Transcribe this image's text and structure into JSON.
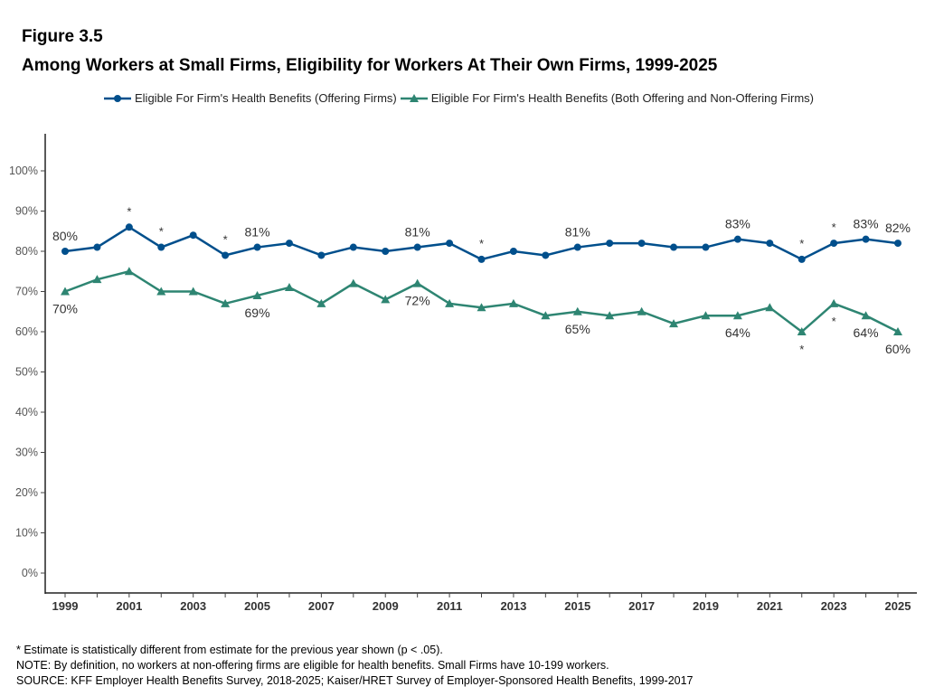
{
  "figure_label": "Figure 3.5",
  "chart_data": {
    "type": "line",
    "title": "Among Workers at Small Firms, Eligibility for Workers At Their Own Firms, 1999-2025",
    "xlabel": "",
    "ylabel": "",
    "x": [
      1999,
      2000,
      2001,
      2002,
      2003,
      2004,
      2005,
      2006,
      2007,
      2008,
      2009,
      2010,
      2011,
      2012,
      2013,
      2014,
      2015,
      2016,
      2017,
      2018,
      2019,
      2020,
      2021,
      2022,
      2023,
      2024,
      2025
    ],
    "x_tick_labels": [
      "1999",
      "2001",
      "2003",
      "2005",
      "2007",
      "2009",
      "2011",
      "2013",
      "2015",
      "2017",
      "2019",
      "2021",
      "2023",
      "2025"
    ],
    "y_tick_labels": [
      "0%",
      "10%",
      "20%",
      "30%",
      "40%",
      "50%",
      "60%",
      "70%",
      "80%",
      "90%",
      "100%"
    ],
    "ylim": [
      0,
      100
    ],
    "grid": false,
    "legend_position": "top",
    "series": [
      {
        "name": "Eligible For Firm's Health Benefits (Offering Firms)",
        "color": "#004f8c",
        "marker": "circle",
        "values": [
          80,
          81,
          86,
          81,
          84,
          79,
          81,
          82,
          79,
          81,
          80,
          81,
          82,
          78,
          80,
          79,
          81,
          82,
          82,
          81,
          81,
          83,
          82,
          78,
          82,
          83,
          82
        ],
        "data_labels": {
          "1999": "80%",
          "2005": "81%",
          "2010": "81%",
          "2015": "81%",
          "2020": "83%",
          "2024": "83%",
          "2025": "82%"
        },
        "significant_years": [
          2001,
          2002,
          2004,
          2012,
          2022,
          2023
        ]
      },
      {
        "name": "Eligible For Firm's Health Benefits (Both Offering and Non-Offering Firms)",
        "color": "#2e8572",
        "marker": "triangle",
        "values": [
          70,
          73,
          75,
          70,
          70,
          67,
          69,
          71,
          67,
          72,
          68,
          72,
          67,
          66,
          67,
          64,
          65,
          64,
          65,
          62,
          64,
          64,
          66,
          60,
          67,
          64,
          60
        ],
        "data_labels": {
          "1999": "70%",
          "2005": "69%",
          "2010": "72%",
          "2015": "65%",
          "2020": "64%",
          "2024": "64%",
          "2025": "60%"
        },
        "significant_years": [
          2022,
          2023
        ]
      }
    ],
    "significance_marker": "*"
  },
  "notes": [
    "* Estimate is statistically different from estimate for the previous year shown (p < .05).",
    "NOTE: By definition, no workers at non-offering firms are eligible for health benefits. Small Firms have 10-199 workers.",
    "SOURCE: KFF Employer Health Benefits Survey, 2018-2025; Kaiser/HRET Survey of Employer-Sponsored Health Benefits, 1999-2017"
  ]
}
